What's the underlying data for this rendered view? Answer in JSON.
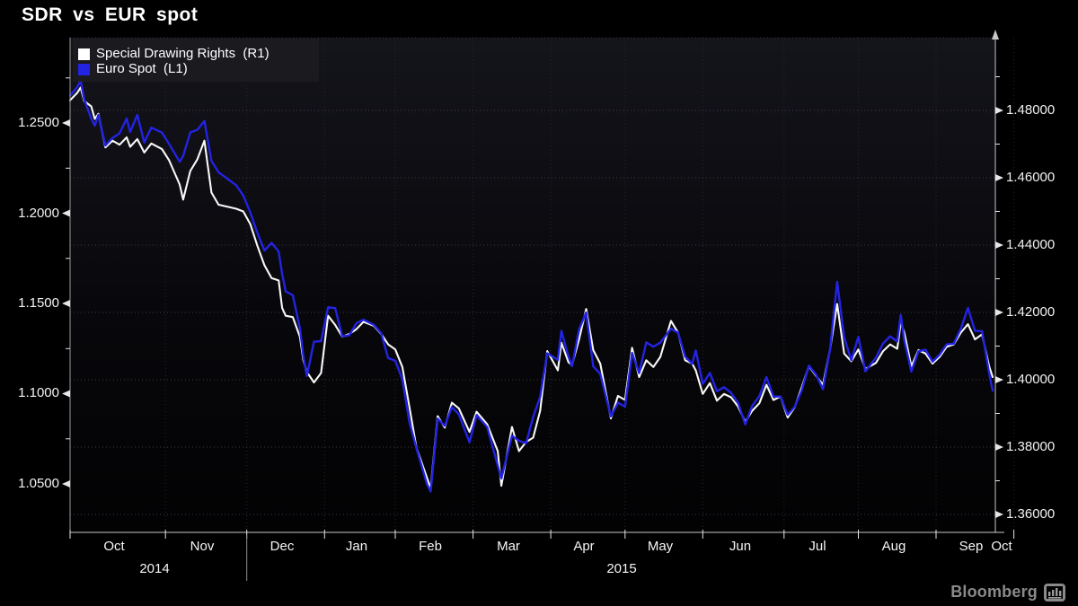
{
  "title": "SDR vs EUR spot",
  "legend": {
    "items": [
      {
        "label": "Special Drawing Rights  (R1)",
        "color": "#ffffff"
      },
      {
        "label": "Euro Spot  (L1)",
        "color": "#2323e4"
      }
    ]
  },
  "footer": {
    "brand": "Bloomberg",
    "logo_icon": "bar-chart-icon"
  },
  "colors": {
    "background": "#000000",
    "plot_gradient_top": "#14141b",
    "plot_gradient_bottom": "#020203",
    "grid": "#3a3a44",
    "grid_vertical": "#26262e",
    "axis_line": "#c8c8c8",
    "tick": "#e6e6e6",
    "sdr_line": "#f8f8f8",
    "eur_line": "#2323e4",
    "year_separator": "#909090"
  },
  "chart_data": {
    "type": "line",
    "title": "SDR vs EUR spot",
    "x_axis": {
      "start": "2014-10-23",
      "end": "2015-10-23",
      "scale": "business-days",
      "month_labels": [
        "Oct",
        "Nov",
        "Dec",
        "Jan",
        "Feb",
        "Mar",
        "Apr",
        "May",
        "Jun",
        "Jul",
        "Aug",
        "Sep",
        "Oct"
      ],
      "year_labels": [
        "2014",
        "2015"
      ]
    },
    "left_axis": {
      "series": "Euro Spot (L1)",
      "tick_labels": [
        "1.2500",
        "1.2000",
        "1.1500",
        "1.1000",
        "1.0500"
      ],
      "tick_values": [
        1.25,
        1.2,
        1.15,
        1.1,
        1.05
      ],
      "approx_range": [
        1.023,
        1.297
      ]
    },
    "right_axis": {
      "series": "Special Drawing Rights (R1)",
      "tick_labels": [
        "1.48000",
        "1.46000",
        "1.44000",
        "1.42000",
        "1.40000",
        "1.38000",
        "1.36000"
      ],
      "tick_values": [
        1.48,
        1.46,
        1.44,
        1.42,
        1.4,
        1.38,
        1.36
      ],
      "approx_range": [
        1.354,
        1.502
      ]
    },
    "dates": [
      "2014-10-23",
      "2014-10-27",
      "2014-10-28",
      "2014-10-29",
      "2014-10-31",
      "2014-11-03",
      "2014-11-04",
      "2014-11-06",
      "2014-11-10",
      "2014-11-12",
      "2014-11-14",
      "2014-11-17",
      "2014-11-19",
      "2014-11-21",
      "2014-11-25",
      "2014-11-28",
      "2014-12-02",
      "2014-12-05",
      "2014-12-08",
      "2014-12-10",
      "2014-12-12",
      "2014-12-16",
      "2014-12-18",
      "2014-12-22",
      "2014-12-29",
      "2014-12-31",
      "2015-01-02",
      "2015-01-06",
      "2015-01-08",
      "2015-01-12",
      "2015-01-14",
      "2015-01-15",
      "2015-01-16",
      "2015-01-20",
      "2015-01-22",
      "2015-01-23",
      "2015-01-26",
      "2015-01-28",
      "2015-01-30",
      "2015-02-03",
      "2015-02-05",
      "2015-02-09",
      "2015-02-11",
      "2015-02-13",
      "2015-02-17",
      "2015-02-20",
      "2015-02-24",
      "2015-02-26",
      "2015-03-02",
      "2015-03-04",
      "2015-03-06",
      "2015-03-10",
      "2015-03-13",
      "2015-03-16",
      "2015-03-18",
      "2015-03-20",
      "2015-03-24",
      "2015-03-26",
      "2015-03-31",
      "2015-04-02",
      "2015-04-07",
      "2015-04-10",
      "2015-04-13",
      "2015-04-16",
      "2015-04-20",
      "2015-04-22",
      "2015-04-24",
      "2015-04-28",
      "2015-04-30",
      "2015-05-05",
      "2015-05-06",
      "2015-05-08",
      "2015-05-11",
      "2015-05-13",
      "2015-05-15",
      "2015-05-19",
      "2015-05-21",
      "2015-05-26",
      "2015-05-28",
      "2015-06-01",
      "2015-06-03",
      "2015-06-05",
      "2015-06-09",
      "2015-06-11",
      "2015-06-15",
      "2015-06-18",
      "2015-06-22",
      "2015-06-24",
      "2015-06-26",
      "2015-06-29",
      "2015-07-01",
      "2015-07-03",
      "2015-07-07",
      "2015-07-09",
      "2015-07-13",
      "2015-07-15",
      "2015-07-17",
      "2015-07-21",
      "2015-07-23",
      "2015-07-27",
      "2015-07-29",
      "2015-07-31",
      "2015-08-04",
      "2015-08-06",
      "2015-08-10",
      "2015-08-12",
      "2015-08-14",
      "2015-08-18",
      "2015-08-20",
      "2015-08-24",
      "2015-08-26",
      "2015-08-28",
      "2015-09-01",
      "2015-09-03",
      "2015-09-08",
      "2015-09-10",
      "2015-09-14",
      "2015-09-16",
      "2015-09-17",
      "2015-09-18",
      "2015-09-22",
      "2015-09-24",
      "2015-09-28",
      "2015-09-30",
      "2015-10-02",
      "2015-10-06",
      "2015-10-08",
      "2015-10-12",
      "2015-10-14",
      "2015-10-16",
      "2015-10-20",
      "2015-10-22",
      "2015-10-23"
    ],
    "series": [
      {
        "name": "Special Drawing Rights",
        "axis": "R1",
        "color": "#f8f8f8",
        "values": [
          1.483,
          1.4852,
          1.4868,
          1.4828,
          1.4812,
          1.4775,
          1.479,
          1.469,
          1.471,
          1.4698,
          1.472,
          1.4692,
          1.4715,
          1.4675,
          1.4702,
          1.4685,
          1.4652,
          1.458,
          1.4535,
          1.462,
          1.4655,
          1.471,
          1.4556,
          1.452,
          1.4508,
          1.45,
          1.4462,
          1.4398,
          1.434,
          1.4302,
          1.4295,
          1.4213,
          1.419,
          1.4186,
          1.4128,
          1.4058,
          1.4023,
          1.3992,
          1.402,
          1.419,
          1.4163,
          1.4128,
          1.4136,
          1.415,
          1.4172,
          1.416,
          1.4136,
          1.4105,
          1.409,
          1.4038,
          1.392,
          1.3798,
          1.3708,
          1.3678,
          1.3892,
          1.3858,
          1.3932,
          1.3915,
          1.3845,
          1.3905,
          1.3868,
          1.3788,
          1.3685,
          1.386,
          1.3788,
          1.3815,
          1.3828,
          1.3908,
          1.4085,
          1.4028,
          1.411,
          1.4052,
          1.4044,
          1.412,
          1.421,
          1.4088,
          1.4048,
          1.3885,
          1.3952,
          1.394,
          1.4095,
          1.4008,
          1.4058,
          1.4038,
          1.4068,
          1.4175,
          1.414,
          1.4058,
          1.4048,
          1.4028,
          1.3958,
          1.399,
          1.3938,
          1.3958,
          1.3948,
          1.392,
          1.3875,
          1.3908,
          1.393,
          1.3985,
          1.394,
          1.395,
          1.3888,
          1.3918,
          1.3978,
          1.404,
          1.4012,
          1.3985,
          1.409,
          1.4225,
          1.4078,
          1.4055,
          1.409,
          1.4032,
          1.405,
          1.4085,
          1.4105,
          1.4092,
          1.417,
          1.414,
          1.404,
          1.4088,
          1.4078,
          1.4048,
          1.4068,
          1.4098,
          1.4105,
          1.414,
          1.4165,
          1.412,
          1.4135,
          1.404,
          1.4008
        ]
      },
      {
        "name": "Euro Spot",
        "axis": "L1",
        "color": "#2323e4",
        "values": [
          1.2651,
          1.2699,
          1.2734,
          1.2632,
          1.2524,
          1.2485,
          1.2545,
          1.2375,
          1.2417,
          1.2443,
          1.2525,
          1.245,
          1.2545,
          1.2392,
          1.2474,
          1.2447,
          1.2384,
          1.2285,
          1.2317,
          1.2448,
          1.2462,
          1.2511,
          1.2289,
          1.2227,
          1.2155,
          1.2098,
          1.2003,
          1.1891,
          1.1793,
          1.1836,
          1.1787,
          1.1662,
          1.1567,
          1.1546,
          1.1364,
          1.1206,
          1.1098,
          1.1288,
          1.1291,
          1.1479,
          1.1474,
          1.1318,
          1.1324,
          1.139,
          1.141,
          1.138,
          1.1335,
          1.1197,
          1.1183,
          1.1079,
          1.0843,
          1.0697,
          1.0497,
          1.0458,
          1.0862,
          1.0822,
          1.0926,
          1.0885,
          1.0731,
          1.0881,
          1.0815,
          1.0602,
          1.053,
          1.0767,
          1.0739,
          1.0725,
          1.0871,
          1.0982,
          1.1224,
          1.1187,
          1.1348,
          1.1205,
          1.1152,
          1.1355,
          1.145,
          1.1151,
          1.111,
          1.0874,
          1.095,
          1.0928,
          1.1226,
          1.1114,
          1.1284,
          1.126,
          1.1283,
          1.136,
          1.1338,
          1.1205,
          1.1166,
          1.124,
          1.1054,
          1.1115,
          1.1014,
          1.1036,
          1.1005,
          1.0948,
          1.083,
          1.0934,
          1.0986,
          1.1092,
          1.0984,
          1.0984,
          1.0883,
          1.0927,
          1.1019,
          1.1155,
          1.1106,
          1.1025,
          1.1246,
          1.162,
          1.1313,
          1.1185,
          1.1315,
          1.1124,
          1.12,
          1.1278,
          1.1318,
          1.1289,
          1.1437,
          1.1296,
          1.1123,
          1.1235,
          1.1244,
          1.1177,
          1.1216,
          1.1273,
          1.1277,
          1.136,
          1.1475,
          1.1349,
          1.1346,
          1.1113,
          1.1017
        ]
      }
    ]
  }
}
